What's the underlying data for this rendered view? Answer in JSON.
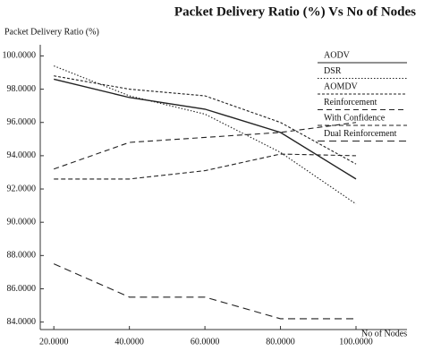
{
  "chart_data": {
    "type": "line",
    "title": "Packet Delivery Ratio (%) Vs No of Nodes",
    "y_label": "Packet Delivery Ratio (%)",
    "x_label": "No of Nodes",
    "x": [
      20,
      40,
      60,
      80,
      100
    ],
    "xlim": [
      16.4,
      113.5
    ],
    "xticks": [
      {
        "value": 20,
        "label": "20.0000"
      },
      {
        "value": 40,
        "label": "40.0000"
      },
      {
        "value": 60,
        "label": "60.0000"
      },
      {
        "value": 80,
        "label": "80.0000"
      },
      {
        "value": 100,
        "label": "100.0000"
      }
    ],
    "ylim": [
      83.55,
      100.4
    ],
    "yticks": [
      {
        "value": 84,
        "label": "84.0000"
      },
      {
        "value": 86,
        "label": "86.0000"
      },
      {
        "value": 88,
        "label": "88.0000"
      },
      {
        "value": 90,
        "label": "90.0000"
      },
      {
        "value": 92,
        "label": "92.0000"
      },
      {
        "value": 94,
        "label": "94.0000"
      },
      {
        "value": 96,
        "label": "96.0000"
      },
      {
        "value": 98,
        "label": "98.0000"
      },
      {
        "value": 100,
        "label": "100.0000"
      }
    ],
    "legend": "upper right",
    "series": [
      {
        "name": "AODV",
        "color": "#222222",
        "line_style": "solid",
        "values": [
          98.6,
          97.5,
          96.8,
          95.4,
          92.6
        ]
      },
      {
        "name": "DSR",
        "color": "#222222",
        "line_style": "dotted",
        "values": [
          99.4,
          97.6,
          96.5,
          94.2,
          91.1
        ]
      },
      {
        "name": "AOMDV",
        "color": "#222222",
        "line_style": "short-dash",
        "values": [
          98.8,
          98.0,
          97.6,
          96.0,
          93.5
        ]
      },
      {
        "name": "Reinforcement",
        "color": "#222222",
        "line_style": "dashed",
        "values": [
          93.2,
          94.8,
          95.1,
          95.4,
          96.0
        ]
      },
      {
        "name": "With Confidence",
        "color": "#222222",
        "line_style": "medium-dash",
        "values": [
          92.6,
          92.6,
          93.1,
          94.1,
          94.0
        ]
      },
      {
        "name": "Dual Reinforcement",
        "color": "#222222",
        "line_style": "long-dash",
        "values": [
          87.5,
          85.5,
          85.5,
          84.2,
          84.2
        ]
      }
    ]
  }
}
